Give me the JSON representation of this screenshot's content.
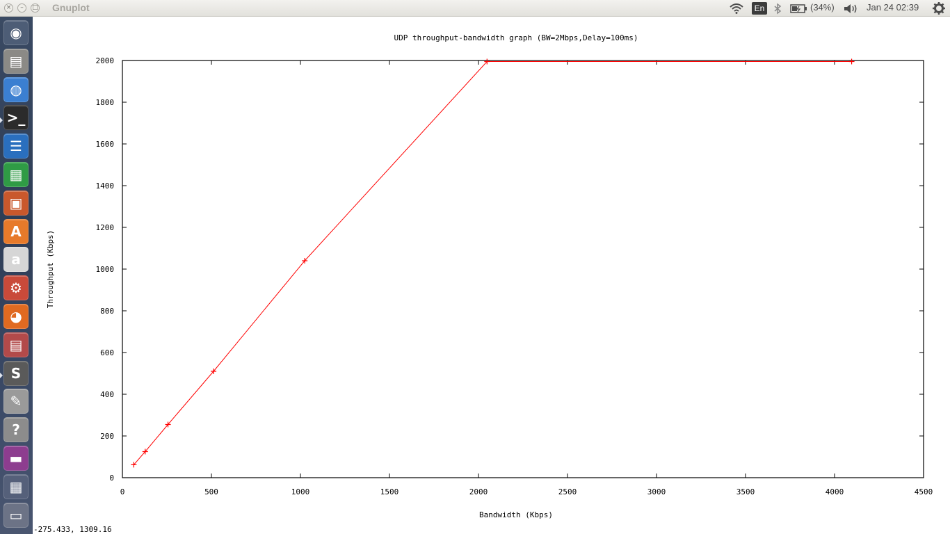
{
  "window": {
    "title": "Gnuplot",
    "close_glyph": "×",
    "minimize_glyph": "–",
    "maximize_glyph": "□"
  },
  "panel": {
    "keyboard_layout": "En",
    "battery": "(34%)",
    "clock": "Jan 24 02:39",
    "icons": [
      "wifi-icon",
      "bluetooth-icon",
      "battery-icon",
      "volume-icon",
      "gear-icon"
    ]
  },
  "launcher": {
    "items": [
      {
        "name": "dash-home",
        "glyph": "◉",
        "bg": "#4d5d76"
      },
      {
        "name": "files",
        "glyph": "▤",
        "bg": "#8b8a86"
      },
      {
        "name": "chrome",
        "glyph": "◍",
        "bg": "#3b7fd1"
      },
      {
        "name": "terminal",
        "glyph": ">_",
        "bg": "#2b2b2b"
      },
      {
        "name": "writer",
        "glyph": "☰",
        "bg": "#2a6fbe"
      },
      {
        "name": "calc",
        "glyph": "▦",
        "bg": "#2f9b45"
      },
      {
        "name": "impress",
        "glyph": "▣",
        "bg": "#c9582c"
      },
      {
        "name": "software-center",
        "glyph": "A",
        "bg": "#e77a2a"
      },
      {
        "name": "amazon",
        "glyph": "a",
        "bg": "#d6d6d6"
      },
      {
        "name": "system-settings",
        "glyph": "⚙",
        "bg": "#c94a3a"
      },
      {
        "name": "firefox",
        "glyph": "◕",
        "bg": "#e06a21"
      },
      {
        "name": "archive",
        "glyph": "▤",
        "bg": "#b24a4a"
      },
      {
        "name": "sublime-text",
        "glyph": "S",
        "bg": "#5a5a5a"
      },
      {
        "name": "text-editor",
        "glyph": "✎",
        "bg": "#9a9a9a"
      },
      {
        "name": "help",
        "glyph": "?",
        "bg": "#8c8c8c"
      },
      {
        "name": "workspace",
        "glyph": "▬",
        "bg": "#8d3d8f"
      },
      {
        "name": "workspace-switcher",
        "glyph": "▦",
        "bg": "#55607a"
      },
      {
        "name": "trash",
        "glyph": "▭",
        "bg": "#6c7386"
      }
    ]
  },
  "chart_data": {
    "type": "line",
    "title": "UDP throughput-bandwidth graph (BW=2Mbps,Delay=100ms)",
    "xlabel": "Bandwidth (Kbps)",
    "ylabel": "Throughput (Kbps)",
    "xlim": [
      0,
      4500
    ],
    "ylim": [
      0,
      2000
    ],
    "xticks": [
      0,
      500,
      1000,
      1500,
      2000,
      2500,
      3000,
      3500,
      4000,
      4500
    ],
    "yticks": [
      0,
      200,
      400,
      600,
      800,
      1000,
      1200,
      1400,
      1600,
      1800,
      2000
    ],
    "grid": false,
    "series": [
      {
        "color": "#ff0000",
        "marker": "+",
        "x": [
          64,
          128,
          256,
          512,
          1024,
          2048,
          4096
        ],
        "y": [
          62,
          125,
          255,
          510,
          1040,
          1995,
          1995
        ]
      }
    ]
  },
  "statusbar": {
    "coordinates": "-275.433,  1309.16"
  }
}
